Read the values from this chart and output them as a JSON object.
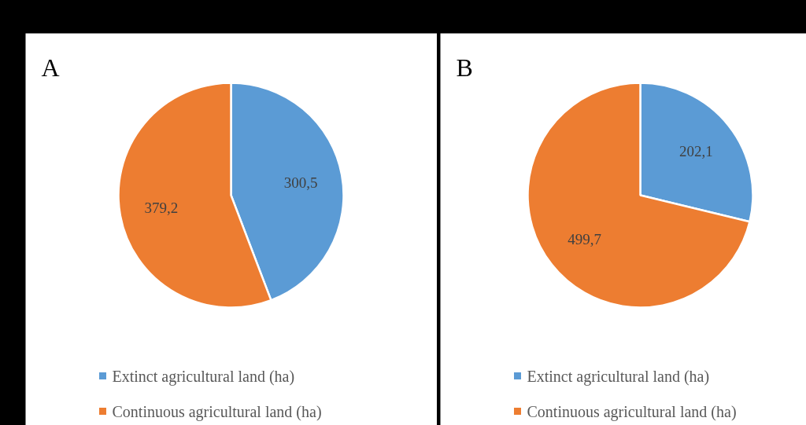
{
  "chart_data": [
    {
      "type": "pie",
      "title": "A",
      "categories": [
        "Extinct agricultural land (ha)",
        "Continuous agricultural land (ha)"
      ],
      "values": [
        300.5,
        379.2
      ],
      "colors": [
        "#5b9bd5",
        "#ed7d31"
      ],
      "value_labels": [
        "300,5",
        "379,2"
      ],
      "legend": "bottom"
    },
    {
      "type": "pie",
      "title": "B",
      "categories": [
        "Extinct agricultural land (ha)",
        "Continuous agricultural land (ha)"
      ],
      "values": [
        202.1,
        499.7
      ],
      "colors": [
        "#5b9bd5",
        "#ed7d31"
      ],
      "value_labels": [
        "202,1",
        "499,7"
      ],
      "legend": "bottom"
    }
  ]
}
